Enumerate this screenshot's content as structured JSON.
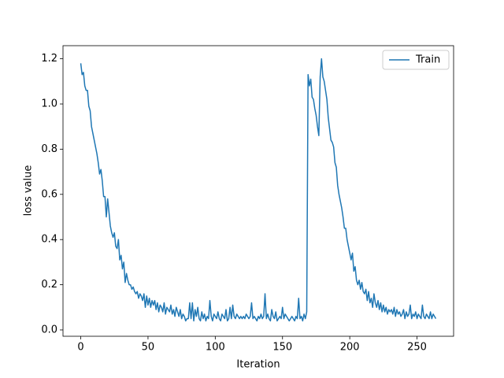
{
  "chart_data": {
    "type": "line",
    "xlabel": "Iteration",
    "ylabel": "loss value",
    "x": [
      0,
      1,
      2,
      3,
      4,
      5,
      6,
      7,
      8,
      9,
      10,
      11,
      12,
      13,
      14,
      15,
      16,
      17,
      18,
      19,
      20,
      21,
      22,
      23,
      24,
      25,
      26,
      27,
      28,
      29,
      30,
      31,
      32,
      33,
      34,
      35,
      36,
      37,
      38,
      39,
      40,
      41,
      42,
      43,
      44,
      45,
      46,
      47,
      48,
      49,
      50,
      51,
      52,
      53,
      54,
      55,
      56,
      57,
      58,
      59,
      60,
      61,
      62,
      63,
      64,
      65,
      66,
      67,
      68,
      69,
      70,
      71,
      72,
      73,
      74,
      75,
      76,
      77,
      78,
      79,
      80,
      81,
      82,
      83,
      84,
      85,
      86,
      87,
      88,
      89,
      90,
      91,
      92,
      93,
      94,
      95,
      96,
      97,
      98,
      99,
      100,
      101,
      102,
      103,
      104,
      105,
      106,
      107,
      108,
      109,
      110,
      111,
      112,
      113,
      114,
      115,
      116,
      117,
      118,
      119,
      120,
      121,
      122,
      123,
      124,
      125,
      126,
      127,
      128,
      129,
      130,
      131,
      132,
      133,
      134,
      135,
      136,
      137,
      138,
      139,
      140,
      141,
      142,
      143,
      144,
      145,
      146,
      147,
      148,
      149,
      150,
      151,
      152,
      153,
      154,
      155,
      156,
      157,
      158,
      159,
      160,
      161,
      162,
      163,
      164,
      165,
      166,
      167,
      168,
      169,
      170,
      171,
      172,
      173,
      174,
      175,
      176,
      177,
      178,
      179,
      180,
      181,
      182,
      183,
      184,
      185,
      186,
      187,
      188,
      189,
      190,
      191,
      192,
      193,
      194,
      195,
      196,
      197,
      198,
      199,
      200,
      201,
      202,
      203,
      204,
      205,
      206,
      207,
      208,
      209,
      210,
      211,
      212,
      213,
      214,
      215,
      216,
      217,
      218,
      219,
      220,
      221,
      222,
      223,
      224,
      225,
      226,
      227,
      228,
      229,
      230,
      231,
      232,
      233,
      234,
      235,
      236,
      237,
      238,
      239,
      240,
      241,
      242,
      243,
      244,
      245,
      246,
      247,
      248,
      249,
      250,
      251,
      252,
      253,
      254,
      255,
      256,
      257,
      258,
      259,
      260,
      261,
      262,
      263,
      264
    ],
    "series": [
      {
        "name": "Train",
        "color": "#1f77b4",
        "values": [
          1.18,
          1.13,
          1.14,
          1.08,
          1.06,
          1.06,
          0.99,
          0.97,
          0.9,
          0.87,
          0.84,
          0.81,
          0.78,
          0.74,
          0.69,
          0.71,
          0.66,
          0.59,
          0.59,
          0.5,
          0.58,
          0.52,
          0.46,
          0.43,
          0.41,
          0.43,
          0.37,
          0.36,
          0.4,
          0.31,
          0.33,
          0.27,
          0.3,
          0.21,
          0.25,
          0.22,
          0.2,
          0.2,
          0.18,
          0.19,
          0.17,
          0.16,
          0.17,
          0.14,
          0.16,
          0.15,
          0.13,
          0.16,
          0.1,
          0.15,
          0.11,
          0.14,
          0.1,
          0.13,
          0.11,
          0.13,
          0.09,
          0.12,
          0.08,
          0.11,
          0.1,
          0.08,
          0.12,
          0.07,
          0.1,
          0.09,
          0.08,
          0.11,
          0.07,
          0.09,
          0.06,
          0.1,
          0.08,
          0.06,
          0.09,
          0.05,
          0.07,
          0.06,
          0.04,
          0.05,
          0.05,
          0.12,
          0.05,
          0.12,
          0.04,
          0.09,
          0.06,
          0.1,
          0.05,
          0.04,
          0.08,
          0.05,
          0.07,
          0.04,
          0.06,
          0.05,
          0.13,
          0.06,
          0.04,
          0.07,
          0.06,
          0.05,
          0.08,
          0.05,
          0.04,
          0.07,
          0.06,
          0.05,
          0.09,
          0.04,
          0.05,
          0.1,
          0.05,
          0.11,
          0.06,
          0.05,
          0.07,
          0.06,
          0.05,
          0.06,
          0.05,
          0.06,
          0.05,
          0.07,
          0.06,
          0.05,
          0.06,
          0.12,
          0.05,
          0.06,
          0.05,
          0.04,
          0.06,
          0.05,
          0.07,
          0.05,
          0.06,
          0.16,
          0.05,
          0.07,
          0.05,
          0.04,
          0.09,
          0.06,
          0.05,
          0.08,
          0.04,
          0.05,
          0.06,
          0.05,
          0.1,
          0.05,
          0.07,
          0.06,
          0.05,
          0.04,
          0.05,
          0.06,
          0.05,
          0.04,
          0.06,
          0.05,
          0.14,
          0.05,
          0.06,
          0.04,
          0.07,
          0.05,
          0.08,
          1.13,
          1.08,
          1.11,
          1.03,
          1.02,
          0.98,
          0.95,
          0.9,
          0.86,
          1.12,
          1.2,
          1.12,
          1.1,
          1.06,
          1.02,
          0.94,
          0.89,
          0.84,
          0.83,
          0.81,
          0.74,
          0.72,
          0.64,
          0.6,
          0.57,
          0.54,
          0.5,
          0.45,
          0.45,
          0.4,
          0.37,
          0.34,
          0.31,
          0.34,
          0.26,
          0.28,
          0.22,
          0.2,
          0.22,
          0.18,
          0.21,
          0.17,
          0.16,
          0.18,
          0.13,
          0.17,
          0.12,
          0.14,
          0.1,
          0.16,
          0.12,
          0.1,
          0.13,
          0.09,
          0.12,
          0.08,
          0.11,
          0.08,
          0.1,
          0.07,
          0.09,
          0.08,
          0.09,
          0.07,
          0.1,
          0.06,
          0.09,
          0.07,
          0.08,
          0.06,
          0.07,
          0.09,
          0.05,
          0.08,
          0.06,
          0.07,
          0.11,
          0.05,
          0.07,
          0.06,
          0.08,
          0.05,
          0.07,
          0.06,
          0.05,
          0.11,
          0.06,
          0.05,
          0.07,
          0.06,
          0.05,
          0.08,
          0.05,
          0.07,
          0.06,
          0.05
        ]
      }
    ],
    "xlim": [
      -13.2,
      277.2
    ],
    "xticks": [
      0,
      50,
      100,
      150,
      200,
      250
    ],
    "ylim": [
      -0.028,
      1.258
    ],
    "yticks": [
      {
        "value": 0,
        "label": "0.0"
      },
      0.2,
      0.4,
      0.6,
      0.8,
      {
        "value": 1,
        "label": "1.0"
      },
      1.2
    ],
    "legend": "upper right"
  }
}
